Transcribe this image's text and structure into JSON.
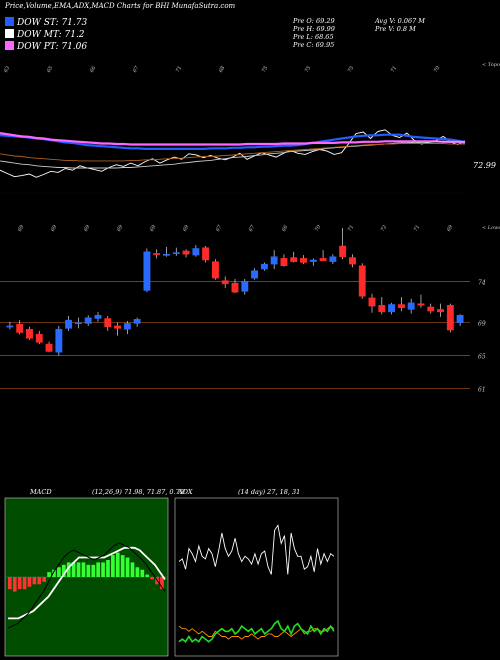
{
  "header": {
    "title": "Price,Volume,EMA,ADX,MACD Charts for BHI MunafaSutra.com",
    "dow": [
      {
        "label": "DOW ST: 71.73",
        "color": "#1f5fff"
      },
      {
        "label": "DOW MT: 71.2",
        "color": "#ffffff"
      },
      {
        "label": "DOW PT: 71.06",
        "color": "#ff66ff"
      }
    ],
    "stats_left": [
      "Pre  O: 69.29",
      "Pre  H: 69.99",
      "Pre  L: 68.65",
      "Pre  C: 69.95"
    ],
    "stats_right": [
      "Avg V: 0.067  M",
      "Pre  V: 0.8  M"
    ]
  },
  "chart_data": [
    {
      "type": "line",
      "name": "ema-volume-panel",
      "top_labels": [
        "63",
        "65",
        "66",
        "67",
        "71",
        "68",
        "75",
        "75",
        "75",
        "71",
        "70"
      ],
      "bottom_labels": [
        "69",
        "69",
        "69",
        "69",
        "69",
        "69",
        "67",
        "67",
        "66",
        "70",
        "71",
        "72",
        "71",
        "69"
      ],
      "side_label_top": "< Topo",
      "side_label_bottom": "< Lowes",
      "last_value_label": "72.99",
      "series": [
        {
          "color": "#ffffff",
          "values": [
            71.8,
            71.2,
            70.6,
            70.8,
            71.1,
            70.5,
            71.0,
            71.6,
            71.4,
            72.1,
            71.8,
            72.6,
            72.2,
            71.9,
            71.6,
            72.3,
            72.8,
            72.5,
            73.1,
            72.6,
            73.4,
            73.9,
            73.1,
            73.7,
            74.2,
            73.8,
            74.8,
            74.6,
            74.1,
            74.5,
            74.0,
            73.7,
            74.2,
            74.9,
            73.8,
            74.4,
            75.0,
            74.6,
            74.2,
            74.9,
            75.4,
            74.9,
            74.7,
            75.2,
            75.6,
            75.3,
            74.7,
            75.0,
            76.7,
            78.5,
            78.8,
            77.6,
            78.9,
            79.2,
            78.2,
            77.8,
            78.6,
            77.3,
            76.6,
            76.9,
            77.2,
            78.0,
            77.0,
            76.5,
            77.2
          ]
        },
        {
          "color": "#1f5fff",
          "values": [
            78.2,
            78.1,
            78.0,
            77.9,
            77.8,
            77.6,
            77.5,
            77.3,
            77.1,
            76.9,
            76.8,
            76.6,
            76.4,
            76.3,
            76.2,
            76.1,
            76.0,
            75.9,
            75.8,
            75.8,
            75.7,
            75.7,
            75.7,
            75.7,
            75.7,
            75.7,
            75.7,
            75.7,
            75.7,
            75.8,
            75.8,
            75.8,
            75.9,
            75.9,
            76.0,
            76.0,
            76.1,
            76.1,
            76.2,
            76.3,
            76.3,
            76.4,
            76.6,
            76.8,
            77.0,
            77.2,
            77.4,
            77.6,
            77.8,
            78.0,
            78.1,
            78.2,
            78.2,
            78.3,
            78.3,
            78.3,
            78.1,
            77.9,
            77.8,
            77.7,
            77.6,
            77.5,
            77.4,
            77.2,
            77.0
          ]
        },
        {
          "color": "#ff66ff",
          "values": [
            78.6,
            78.4,
            78.2,
            78.0,
            77.9,
            77.7,
            77.6,
            77.4,
            77.3,
            77.2,
            77.1,
            77.0,
            76.9,
            76.8,
            76.7,
            76.7,
            76.6,
            76.6,
            76.5,
            76.5,
            76.5,
            76.5,
            76.5,
            76.5,
            76.5,
            76.5,
            76.5,
            76.5,
            76.5,
            76.5,
            76.5,
            76.5,
            76.5,
            76.5,
            76.6,
            76.6,
            76.6,
            76.6,
            76.6,
            76.7,
            76.7,
            76.7,
            76.7,
            76.8,
            76.8,
            76.8,
            76.8,
            76.9,
            76.9,
            76.9,
            77.0,
            77.0,
            77.0,
            77.1,
            77.1,
            77.1,
            77.1,
            77.1,
            77.1,
            77.1,
            77.1,
            77.0,
            77.0,
            77.0,
            76.9
          ]
        },
        {
          "color": "#c8c8c8",
          "values": [
            73.5,
            73.3,
            73.1,
            72.9,
            72.8,
            72.6,
            72.5,
            72.4,
            72.3,
            72.3,
            72.2,
            72.2,
            72.2,
            72.2,
            72.2,
            72.2,
            72.2,
            72.3,
            72.3,
            72.4,
            72.5,
            72.6,
            72.7,
            72.8,
            72.9,
            73.1,
            73.2,
            73.4,
            73.5,
            73.6,
            73.8,
            73.9,
            74.1,
            74.2,
            74.3,
            74.5,
            74.6,
            74.8,
            74.9,
            75.0,
            75.2,
            75.3,
            75.4,
            75.5,
            75.6,
            75.8,
            75.9,
            76.0,
            76.1,
            76.2,
            76.3,
            76.4,
            76.5,
            76.6,
            76.7,
            76.8,
            76.8,
            76.9,
            76.9,
            76.9,
            77.0,
            77.0,
            77.0,
            77.0,
            77.0
          ]
        },
        {
          "color": "#b06020",
          "values": [
            74.8,
            74.6,
            74.4,
            74.3,
            74.1,
            74.0,
            73.9,
            73.8,
            73.7,
            73.6,
            73.6,
            73.5,
            73.5,
            73.5,
            73.5,
            73.5,
            73.5,
            73.5,
            73.6,
            73.6,
            73.7,
            73.7,
            73.8,
            73.9,
            73.9,
            74.0,
            74.1,
            74.2,
            74.3,
            74.3,
            74.4,
            74.5,
            74.6,
            74.7,
            74.8,
            74.9,
            75.0,
            75.1,
            75.2,
            75.3,
            75.4,
            75.5,
            75.6,
            75.7,
            75.8,
            75.9,
            76.0,
            76.1,
            76.2,
            76.3,
            76.4,
            76.5,
            76.5,
            76.6,
            76.6,
            76.7,
            76.7,
            76.7,
            76.7,
            76.7,
            76.7,
            76.7,
            76.6,
            76.6,
            76.6
          ]
        }
      ],
      "ylim": [
        70,
        81
      ]
    },
    {
      "type": "candlestick",
      "name": "price-panel",
      "price_labels": [
        "74",
        "69",
        "65",
        "61"
      ],
      "price_levels": [
        74,
        69,
        65,
        61
      ],
      "ylim": [
        59,
        80
      ],
      "candles": [
        {
          "o": 68.6,
          "h": 69.1,
          "l": 68.2,
          "c": 68.6
        },
        {
          "o": 68.8,
          "h": 69.3,
          "l": 67.6,
          "c": 67.8
        },
        {
          "o": 68.2,
          "h": 68.5,
          "l": 66.9,
          "c": 67.1
        },
        {
          "o": 67.6,
          "h": 68.0,
          "l": 66.4,
          "c": 66.6
        },
        {
          "o": 66.4,
          "h": 66.7,
          "l": 65.4,
          "c": 65.5
        },
        {
          "o": 65.4,
          "h": 68.6,
          "l": 65.0,
          "c": 68.2
        },
        {
          "o": 68.3,
          "h": 69.8,
          "l": 68.0,
          "c": 69.3
        },
        {
          "o": 69.0,
          "h": 69.6,
          "l": 68.3,
          "c": 69.0
        },
        {
          "o": 68.9,
          "h": 69.9,
          "l": 68.6,
          "c": 69.6
        },
        {
          "o": 69.5,
          "h": 70.3,
          "l": 69.1,
          "c": 69.9
        },
        {
          "o": 69.5,
          "h": 69.8,
          "l": 68.0,
          "c": 68.5
        },
        {
          "o": 68.6,
          "h": 69.0,
          "l": 67.4,
          "c": 68.3
        },
        {
          "o": 68.2,
          "h": 69.2,
          "l": 67.6,
          "c": 68.9
        },
        {
          "o": 68.9,
          "h": 69.6,
          "l": 68.5,
          "c": 69.4
        },
        {
          "o": 72.9,
          "h": 78.0,
          "l": 72.7,
          "c": 77.6
        },
        {
          "o": 77.4,
          "h": 77.9,
          "l": 76.8,
          "c": 77.3
        },
        {
          "o": 77.2,
          "h": 78.2,
          "l": 77.0,
          "c": 77.3
        },
        {
          "o": 77.4,
          "h": 78.1,
          "l": 77.1,
          "c": 77.5
        },
        {
          "o": 77.7,
          "h": 77.9,
          "l": 76.9,
          "c": 77.3
        },
        {
          "o": 77.2,
          "h": 78.4,
          "l": 77.0,
          "c": 78.0
        },
        {
          "o": 78.1,
          "h": 78.3,
          "l": 76.3,
          "c": 76.6
        },
        {
          "o": 76.4,
          "h": 76.7,
          "l": 74.2,
          "c": 74.4
        },
        {
          "o": 74.1,
          "h": 74.6,
          "l": 73.2,
          "c": 73.7
        },
        {
          "o": 73.8,
          "h": 74.3,
          "l": 72.6,
          "c": 72.7
        },
        {
          "o": 72.8,
          "h": 74.3,
          "l": 72.4,
          "c": 74.0
        },
        {
          "o": 74.4,
          "h": 75.6,
          "l": 74.2,
          "c": 75.3
        },
        {
          "o": 75.5,
          "h": 76.3,
          "l": 75.3,
          "c": 76.1
        },
        {
          "o": 76.1,
          "h": 77.8,
          "l": 75.5,
          "c": 77.0
        },
        {
          "o": 76.8,
          "h": 77.3,
          "l": 75.8,
          "c": 75.9
        },
        {
          "o": 76.9,
          "h": 77.6,
          "l": 76.3,
          "c": 76.4
        },
        {
          "o": 76.8,
          "h": 77.2,
          "l": 76.1,
          "c": 76.3
        },
        {
          "o": 76.4,
          "h": 76.8,
          "l": 75.9,
          "c": 76.6
        },
        {
          "o": 76.8,
          "h": 77.8,
          "l": 76.5,
          "c": 76.5
        },
        {
          "o": 76.4,
          "h": 77.3,
          "l": 76.1,
          "c": 77.0
        },
        {
          "o": 78.3,
          "h": 80.5,
          "l": 76.7,
          "c": 77.0
        },
        {
          "o": 76.9,
          "h": 77.3,
          "l": 75.7,
          "c": 76.1
        },
        {
          "o": 75.9,
          "h": 76.2,
          "l": 71.9,
          "c": 72.2
        },
        {
          "o": 72.0,
          "h": 72.5,
          "l": 70.2,
          "c": 71.0
        },
        {
          "o": 71.1,
          "h": 72.1,
          "l": 70.0,
          "c": 70.3
        },
        {
          "o": 70.3,
          "h": 71.4,
          "l": 70.0,
          "c": 71.2
        },
        {
          "o": 71.2,
          "h": 72.1,
          "l": 70.4,
          "c": 70.8
        },
        {
          "o": 70.6,
          "h": 71.9,
          "l": 70.1,
          "c": 71.4
        },
        {
          "o": 71.3,
          "h": 72.4,
          "l": 70.8,
          "c": 71.1
        },
        {
          "o": 70.9,
          "h": 71.3,
          "l": 70.1,
          "c": 70.4
        },
        {
          "o": 70.6,
          "h": 71.3,
          "l": 69.7,
          "c": 70.3
        },
        {
          "o": 71.1,
          "h": 71.3,
          "l": 67.8,
          "c": 68.1
        },
        {
          "o": 69.0,
          "h": 70.0,
          "l": 68.6,
          "c": 69.9
        }
      ]
    },
    {
      "type": "area",
      "name": "macd-panel",
      "title": "MACD",
      "params": "(12,26,9) 71.98, 71.87, 0.79",
      "macd": [
        -2.1,
        -2.0,
        -1.9,
        -1.7,
        -1.5,
        -1.2,
        -0.9,
        -0.6,
        -0.2,
        0.2,
        0.5,
        0.8,
        1.0,
        1.1,
        1.0,
        0.9,
        0.8,
        0.7,
        0.8,
        0.9,
        1.1,
        1.3,
        1.4,
        1.3,
        1.2,
        1.0,
        0.8,
        0.6,
        0.3,
        0.0,
        -0.3,
        -0.6
      ],
      "signal": [
        -1.7,
        -1.7,
        -1.7,
        -1.6,
        -1.5,
        -1.4,
        -1.2,
        -1.0,
        -0.8,
        -0.5,
        -0.2,
        0.1,
        0.4,
        0.6,
        0.8,
        0.8,
        0.8,
        0.8,
        0.8,
        0.8,
        0.9,
        1.0,
        1.1,
        1.2,
        1.2,
        1.2,
        1.1,
        0.9,
        0.7,
        0.5,
        0.2,
        -0.1
      ],
      "histogram": [
        -0.5,
        -0.6,
        -0.5,
        -0.5,
        -0.4,
        -0.3,
        -0.3,
        -0.2,
        0.2,
        0.3,
        0.4,
        0.5,
        0.6,
        0.6,
        0.6,
        0.6,
        0.5,
        0.5,
        0.6,
        0.6,
        0.7,
        0.9,
        1.0,
        0.9,
        0.8,
        0.6,
        0.4,
        0.3,
        0.1,
        -0.1,
        -0.3,
        -0.5
      ],
      "ylim": [
        -3,
        3
      ]
    },
    {
      "type": "line",
      "name": "adx-panel",
      "title": "ADX",
      "params": "(14 day) 27, 18, 31",
      "series": [
        {
          "color": "#ffffff",
          "values": [
            35,
            36,
            32,
            40,
            38,
            35,
            41,
            37,
            36,
            40,
            38,
            33,
            39,
            46,
            40,
            37,
            39,
            44,
            38,
            35,
            37,
            36,
            34,
            38,
            34,
            38,
            39,
            33,
            30,
            47,
            49,
            42,
            45,
            30,
            46,
            40,
            37,
            37,
            32,
            33,
            37,
            31,
            40,
            34,
            38,
            35,
            38,
            37
          ]
        },
        {
          "color": "#ff8c00",
          "values": [
            10,
            9,
            9,
            8,
            9,
            8,
            7,
            8,
            7,
            6,
            6,
            8,
            7,
            6,
            6,
            5,
            6,
            6,
            6,
            5,
            6,
            6,
            7,
            6,
            5,
            6,
            6,
            7,
            7,
            6,
            6,
            7,
            8,
            7,
            6,
            7,
            8,
            9,
            7,
            8,
            8,
            9,
            9,
            8,
            8,
            9,
            10,
            9
          ]
        },
        {
          "color": "#22dd22",
          "values": [
            4,
            5,
            4,
            6,
            4,
            5,
            4,
            6,
            5,
            4,
            5,
            7,
            8,
            9,
            8,
            8,
            9,
            7,
            8,
            10,
            9,
            8,
            9,
            7,
            8,
            9,
            7,
            8,
            9,
            11,
            12,
            9,
            8,
            10,
            7,
            10,
            11,
            9,
            8,
            7,
            10,
            8,
            9,
            7,
            9,
            8,
            10,
            8
          ]
        }
      ],
      "ylim": [
        0,
        58
      ]
    }
  ]
}
